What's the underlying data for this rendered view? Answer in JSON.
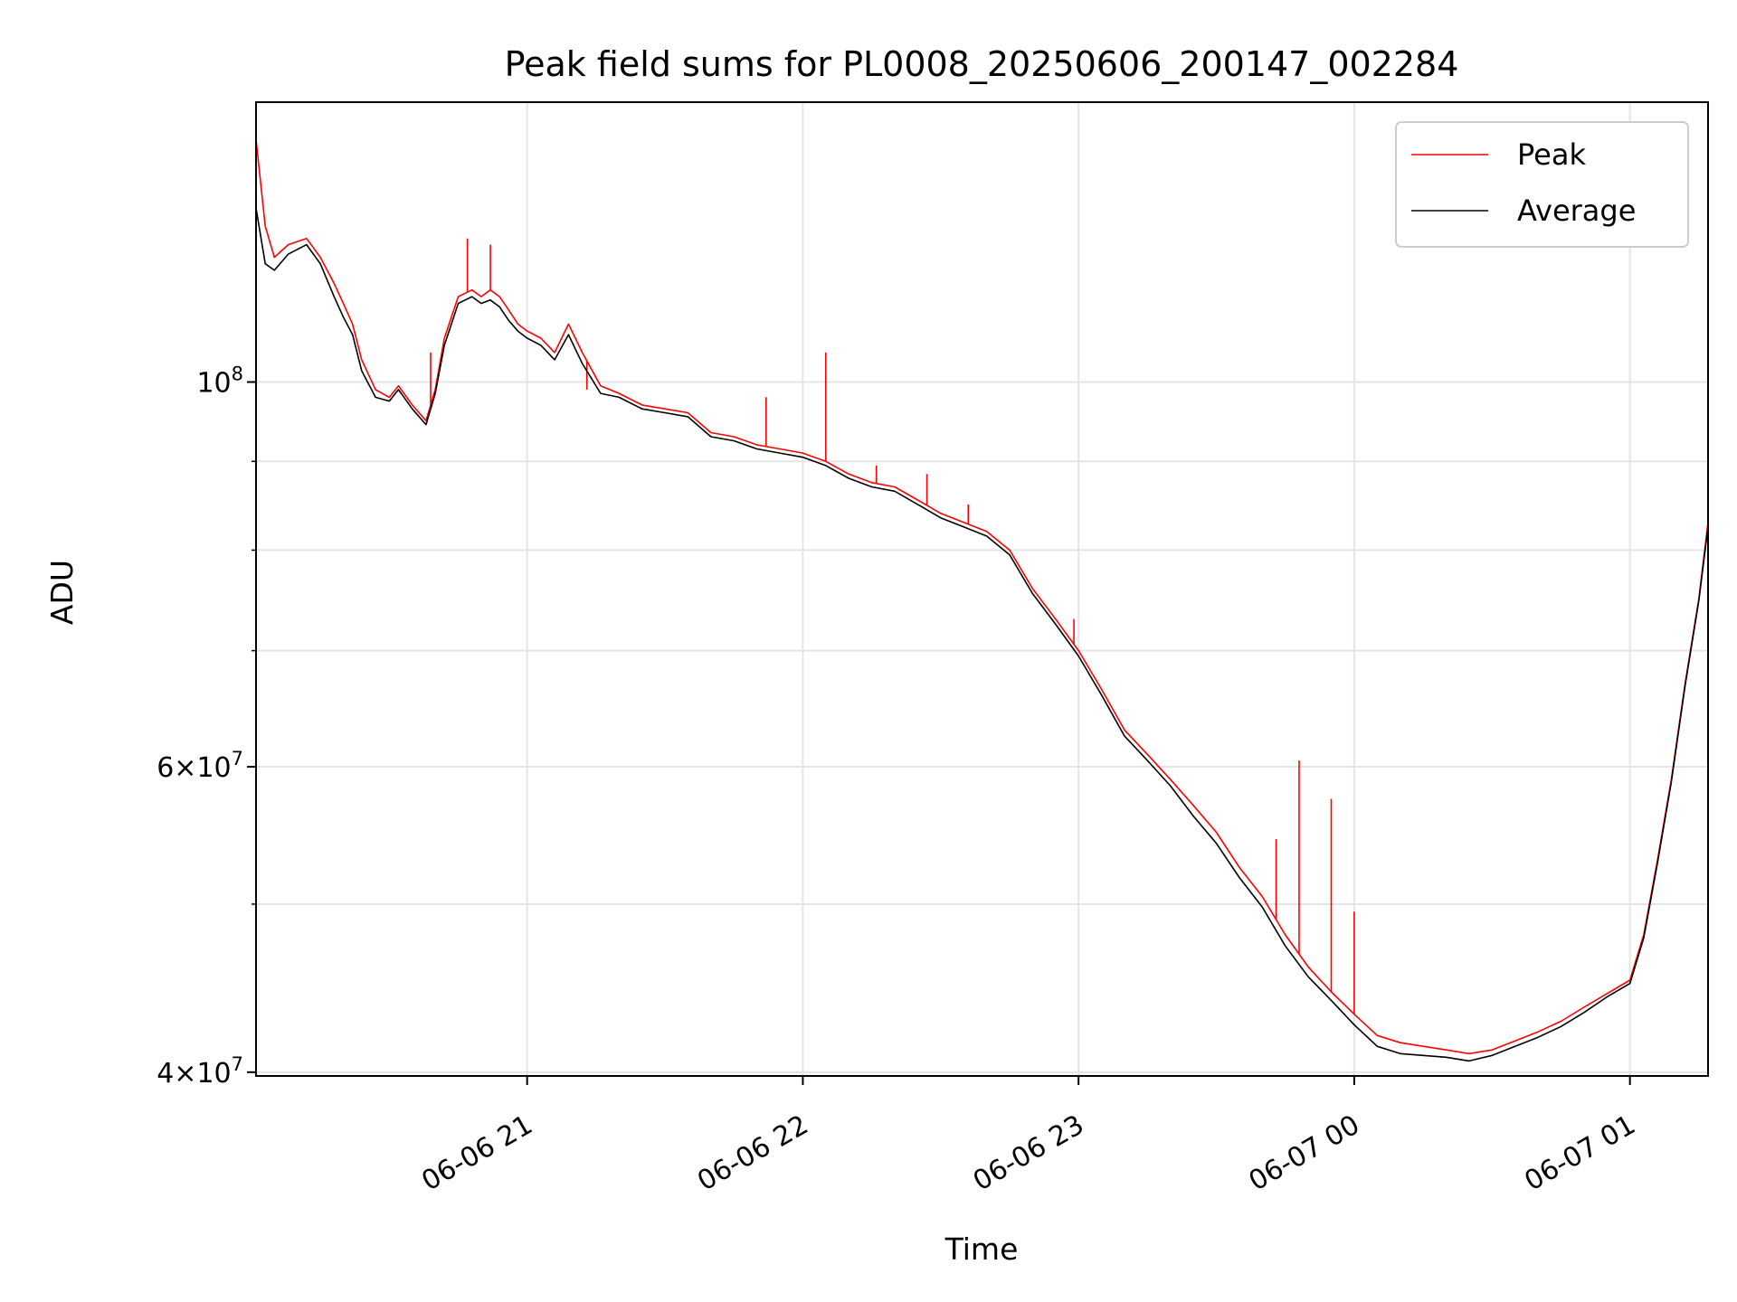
{
  "chart_data": {
    "type": "line",
    "title": "Peak field sums for PL0008_20250606_200147_002284",
    "xlabel": "Time",
    "ylabel": "ADU",
    "yscale": "log",
    "ylim": [
      39800000,
      145000000
    ],
    "xlim": [
      "06-06 20:01",
      "06-07 01:17"
    ],
    "x_ticks": [
      "06-06 21",
      "06-06 22",
      "06-06 23",
      "06-07 00",
      "06-07 01"
    ],
    "y_ticks": [
      {
        "value": 40000000,
        "base": "4",
        "exp": "7"
      },
      {
        "value": 60000000,
        "base": "6",
        "exp": "7"
      },
      {
        "value": 100000000,
        "base": "10",
        "exp": "8"
      }
    ],
    "grid": true,
    "legend_position": "top-right",
    "series": [
      {
        "name": "Peak",
        "color": "#ff0000",
        "x": [
          "06-06 20:01",
          "06-06 20:03",
          "06-06 20:05",
          "06-06 20:08",
          "06-06 20:12",
          "06-06 20:15",
          "06-06 20:18",
          "06-06 20:20",
          "06-06 20:22",
          "06-06 20:24",
          "06-06 20:27",
          "06-06 20:30",
          "06-06 20:32",
          "06-06 20:35",
          "06-06 20:38",
          "06-06 20:40",
          "06-06 20:42",
          "06-06 20:45",
          "06-06 20:48",
          "06-06 20:50",
          "06-06 20:52",
          "06-06 20:54",
          "06-06 20:56",
          "06-06 20:58",
          "06-06 21:00",
          "06-06 21:03",
          "06-06 21:06",
          "06-06 21:09",
          "06-06 21:12",
          "06-06 21:16",
          "06-06 21:20",
          "06-06 21:25",
          "06-06 21:30",
          "06-06 21:35",
          "06-06 21:40",
          "06-06 21:45",
          "06-06 21:50",
          "06-06 21:55",
          "06-06 22:00",
          "06-06 22:05",
          "06-06 22:10",
          "06-06 22:15",
          "06-06 22:20",
          "06-06 22:25",
          "06-06 22:30",
          "06-06 22:35",
          "06-06 22:40",
          "06-06 22:45",
          "06-06 22:50",
          "06-06 22:55",
          "06-06 23:00",
          "06-06 23:05",
          "06-06 23:10",
          "06-06 23:15",
          "06-06 23:20",
          "06-06 23:25",
          "06-06 23:30",
          "06-06 23:35",
          "06-06 23:40",
          "06-06 23:45",
          "06-06 23:50",
          "06-06 23:55",
          "06-07 00:00",
          "06-07 00:05",
          "06-07 00:10",
          "06-07 00:15",
          "06-07 00:20",
          "06-07 00:25",
          "06-07 00:30",
          "06-07 00:35",
          "06-07 00:40",
          "06-07 00:45",
          "06-07 00:50",
          "06-07 00:55",
          "06-07 01:00",
          "06-07 01:03",
          "06-07 01:06",
          "06-07 01:09",
          "06-07 01:12",
          "06-07 01:15",
          "06-07 01:17"
        ],
        "values": [
          138000000,
          123000000,
          118000000,
          120000000,
          121000000,
          118000000,
          114000000,
          111000000,
          108000000,
          103000000,
          99000000,
          98000000,
          99500000,
          97000000,
          95000000,
          99000000,
          106000000,
          112000000,
          113000000,
          112000000,
          113000000,
          112000000,
          110000000,
          108000000,
          107000000,
          106000000,
          104000000,
          108000000,
          104000000,
          99500000,
          98500000,
          97000000,
          96500000,
          96000000,
          93500000,
          93000000,
          92000000,
          91500000,
          91000000,
          90000000,
          88500000,
          87500000,
          87000000,
          85500000,
          84000000,
          83000000,
          82000000,
          80000000,
          76000000,
          73000000,
          70000000,
          66500000,
          63000000,
          61000000,
          59000000,
          57000000,
          55000000,
          52500000,
          50500000,
          48000000,
          46000000,
          44500000,
          43200000,
          42000000,
          41600000,
          41400000,
          41200000,
          41000000,
          41200000,
          41700000,
          42200000,
          42800000,
          43600000,
          44400000,
          45200000,
          48000000,
          53000000,
          59000000,
          67000000,
          75000000,
          83000000
        ],
        "spikes": [
          {
            "x": "06-06 20:01",
            "value": 144000000
          },
          {
            "x": "06-06 20:39",
            "value": 104000000
          },
          {
            "x": "06-06 20:47",
            "value": 121000000
          },
          {
            "x": "06-06 20:52",
            "value": 120000000
          },
          {
            "x": "06-06 21:13",
            "value": 99000000
          },
          {
            "x": "06-06 21:52",
            "value": 98000000
          },
          {
            "x": "06-06 22:05",
            "value": 104000000
          },
          {
            "x": "06-06 22:16",
            "value": 89500000
          },
          {
            "x": "06-06 22:27",
            "value": 88500000
          },
          {
            "x": "06-06 22:36",
            "value": 85000000
          },
          {
            "x": "06-06 22:59",
            "value": 73000000
          },
          {
            "x": "06-06 23:43",
            "value": 54500000
          },
          {
            "x": "06-06 23:48",
            "value": 60500000
          },
          {
            "x": "06-06 23:55",
            "value": 57500000
          },
          {
            "x": "06-07 00:00",
            "value": 49500000
          }
        ]
      },
      {
        "name": "Average",
        "color": "#000000",
        "x": [
          "06-06 20:01",
          "06-06 20:03",
          "06-06 20:05",
          "06-06 20:08",
          "06-06 20:12",
          "06-06 20:15",
          "06-06 20:18",
          "06-06 20:20",
          "06-06 20:22",
          "06-06 20:24",
          "06-06 20:27",
          "06-06 20:30",
          "06-06 20:32",
          "06-06 20:35",
          "06-06 20:38",
          "06-06 20:40",
          "06-06 20:42",
          "06-06 20:45",
          "06-06 20:48",
          "06-06 20:50",
          "06-06 20:52",
          "06-06 20:54",
          "06-06 20:56",
          "06-06 20:58",
          "06-06 21:00",
          "06-06 21:03",
          "06-06 21:06",
          "06-06 21:09",
          "06-06 21:12",
          "06-06 21:16",
          "06-06 21:20",
          "06-06 21:25",
          "06-06 21:30",
          "06-06 21:35",
          "06-06 21:40",
          "06-06 21:45",
          "06-06 21:50",
          "06-06 21:55",
          "06-06 22:00",
          "06-06 22:05",
          "06-06 22:10",
          "06-06 22:15",
          "06-06 22:20",
          "06-06 22:25",
          "06-06 22:30",
          "06-06 22:35",
          "06-06 22:40",
          "06-06 22:45",
          "06-06 22:50",
          "06-06 22:55",
          "06-06 23:00",
          "06-06 23:05",
          "06-06 23:10",
          "06-06 23:15",
          "06-06 23:20",
          "06-06 23:25",
          "06-06 23:30",
          "06-06 23:35",
          "06-06 23:40",
          "06-06 23:45",
          "06-06 23:50",
          "06-06 23:55",
          "06-07 00:00",
          "06-07 00:05",
          "06-07 00:10",
          "06-07 00:15",
          "06-07 00:20",
          "06-07 00:25",
          "06-07 00:30",
          "06-07 00:35",
          "06-07 00:40",
          "06-07 00:45",
          "06-07 00:50",
          "06-07 00:55",
          "06-07 01:00",
          "06-07 01:03",
          "06-07 01:06",
          "06-07 01:09",
          "06-07 01:12",
          "06-07 01:15",
          "06-07 01:17"
        ],
        "values": [
          126000000,
          117000000,
          116000000,
          118500000,
          120000000,
          117000000,
          112000000,
          109000000,
          106500000,
          101500000,
          98000000,
          97500000,
          99000000,
          96500000,
          94500000,
          98500000,
          105000000,
          111000000,
          112000000,
          111000000,
          111500000,
          110500000,
          108500000,
          107000000,
          106000000,
          105000000,
          103000000,
          106500000,
          102500000,
          98500000,
          98000000,
          96500000,
          96000000,
          95500000,
          93000000,
          92500000,
          91500000,
          91000000,
          90500000,
          89500000,
          88000000,
          87000000,
          86500000,
          85000000,
          83500000,
          82500000,
          81500000,
          79500000,
          75500000,
          72500000,
          69500000,
          66000000,
          62500000,
          60500000,
          58500000,
          56200000,
          54200000,
          51800000,
          49800000,
          47300000,
          45400000,
          44000000,
          42600000,
          41400000,
          41000000,
          40900000,
          40800000,
          40600000,
          40900000,
          41400000,
          41900000,
          42500000,
          43300000,
          44200000,
          45000000,
          47800000,
          52800000,
          58800000,
          66800000,
          74800000,
          82500000
        ]
      }
    ]
  }
}
